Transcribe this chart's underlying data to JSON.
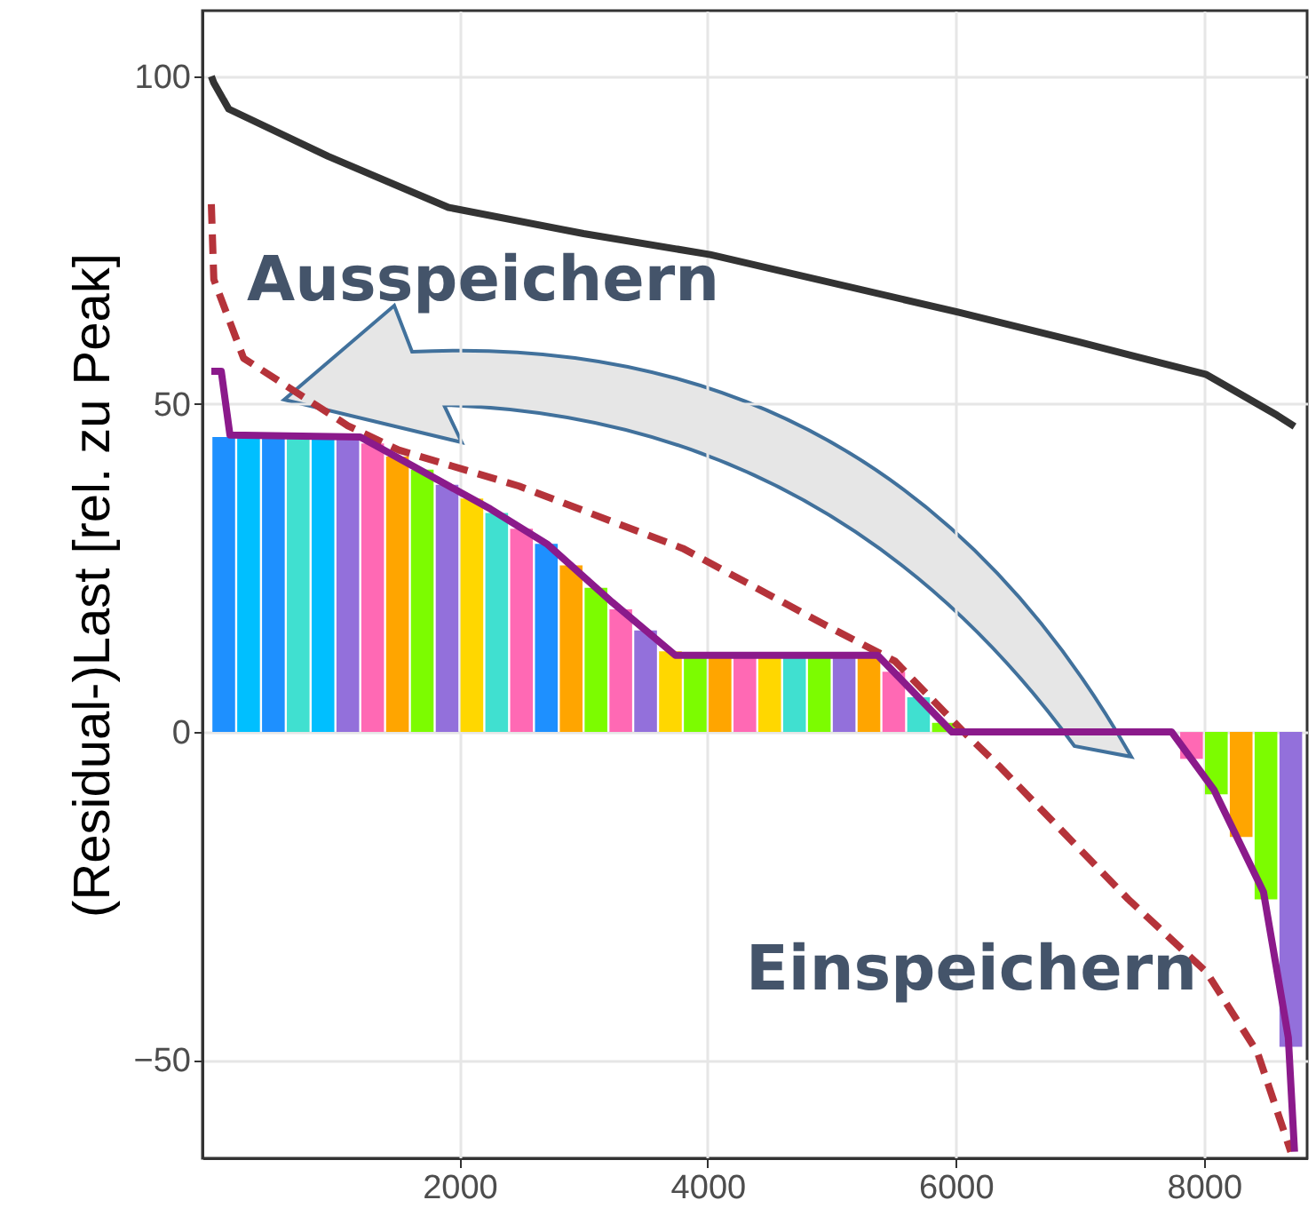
{
  "chart_data": {
    "type": "line",
    "ylabel": "(Residual-)Last [rel. zu Peak]",
    "annotations": [
      "Ausspeichern",
      "Einspeichern"
    ],
    "xlim": [
      0,
      8760
    ],
    "ylim": [
      -65,
      110
    ],
    "xticks": [
      2000,
      4000,
      6000,
      8000
    ],
    "yticks": [
      -50,
      0,
      50,
      100
    ],
    "grid": true,
    "series": [
      {
        "type": "bar",
        "x": [
          100,
          300,
          500,
          700,
          900,
          1100,
          1300,
          1500,
          1700,
          1900,
          2100,
          2300,
          2500,
          2700,
          2900,
          3100,
          3300,
          3500,
          3700,
          3900,
          4100,
          4300,
          4500,
          4700,
          4900,
          5100,
          5300,
          5500,
          5700,
          5900,
          7900,
          8100,
          8300,
          8500,
          8700
        ],
        "values": [
          45,
          45,
          45,
          45,
          45,
          45,
          44,
          42,
          40,
          37.7,
          35.6,
          33.4,
          31,
          28.7,
          25.4,
          22,
          18.7,
          15.5,
          12.3,
          11.7,
          11.7,
          11.7,
          11.7,
          11.7,
          11.7,
          11.7,
          11.7,
          9.2,
          5.3,
          1.4,
          -4.1,
          -9.5,
          -16,
          -25.5,
          -48
        ],
        "colors": [
          "#1e90ff",
          "#00bfff",
          "#1e90ff",
          "#40e0d0",
          "#00bfff",
          "#9370db",
          "#ff69b4",
          "#ffa500",
          "#7cfc00",
          "#9370db",
          "#ffd700",
          "#40e0d0",
          "#ff69b4",
          "#1e90ff",
          "#ffa500",
          "#7cfc00",
          "#ff69b4",
          "#9370db",
          "#ffd700",
          "#7cfc00",
          "#ffa500",
          "#ff69b4",
          "#ffd700",
          "#40e0d0",
          "#7cfc00",
          "#9370db",
          "#ffa500",
          "#ff69b4",
          "#40e0d0",
          "#7cfc00",
          "#ff69b4",
          "#7cfc00",
          "#ffa500",
          "#7cfc00",
          "#9370db"
        ]
      },
      {
        "color": "#333333",
        "x": [
          0,
          20,
          140,
          940,
          1910,
          3000,
          4020,
          6025,
          6990,
          8020,
          8590,
          8730
        ],
        "values": [
          100,
          99,
          95,
          87.8,
          80,
          76,
          72.8,
          64,
          59.5,
          54.5,
          48.3,
          46.6
        ]
      },
      {
        "color": "#b5333a",
        "line_style": "dashed",
        "x": [
          0,
          20,
          260,
          1100,
          1510,
          2480,
          3800,
          4940,
          5510,
          6080,
          6360,
          7390,
          8020,
          8430,
          8700
        ],
        "values": [
          80.5,
          69,
          57,
          46.7,
          43,
          37.5,
          28,
          16.4,
          10.8,
          -0.3,
          -5.4,
          -25.5,
          -36.6,
          -48.8,
          -64
        ]
      },
      {
        "color": "#8b1a8b",
        "x": [
          0,
          80,
          150,
          1200,
          2250,
          2710,
          3230,
          3740,
          5370,
          5970,
          7740,
          8080,
          8480,
          8680,
          8730
        ],
        "values": [
          55,
          55,
          45.3,
          45,
          34,
          28.6,
          19.8,
          11.7,
          11.7,
          0,
          0,
          -8.8,
          -24.4,
          -46.6,
          -64
        ]
      }
    ]
  }
}
